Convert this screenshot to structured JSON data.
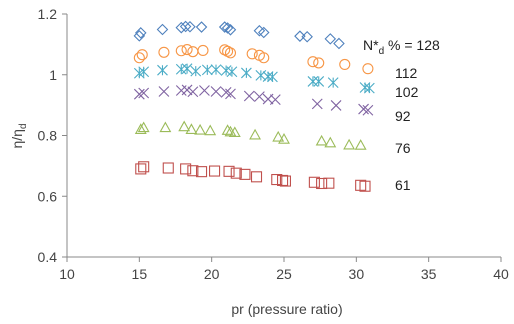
{
  "chart_data": {
    "type": "scatter",
    "title": "",
    "xlabel": "pr (pressure ratio)",
    "ylabel": "η/η",
    "ylabel_subscript": "d",
    "xlim": [
      10,
      40
    ],
    "ylim": [
      0.4,
      1.2
    ],
    "xticks": [
      "10",
      "15",
      "20",
      "25",
      "30",
      "35",
      "40"
    ],
    "yticks": [
      "0.4",
      "0.6",
      "0.8",
      "1",
      "1.2"
    ],
    "grid": false,
    "series": [
      {
        "label": "N*d % = 128",
        "label_parts": {
          "pre": "N*",
          "sub": "d",
          "post": " % = 128"
        },
        "marker": "diamond",
        "color": "#4F81BD",
        "points": [
          [
            15.0,
            1.128
          ],
          [
            15.1,
            1.138
          ],
          [
            16.6,
            1.149
          ],
          [
            17.9,
            1.155
          ],
          [
            18.2,
            1.159
          ],
          [
            18.5,
            1.158
          ],
          [
            19.3,
            1.157
          ],
          [
            20.9,
            1.157
          ],
          [
            21.1,
            1.154
          ],
          [
            21.3,
            1.148
          ],
          [
            23.3,
            1.145
          ],
          [
            23.6,
            1.139
          ],
          [
            26.1,
            1.127
          ],
          [
            26.6,
            1.125
          ],
          [
            28.2,
            1.118
          ],
          [
            28.8,
            1.103
          ]
        ]
      },
      {
        "label": "112",
        "marker": "circle",
        "color": "#F79646",
        "points": [
          [
            15.0,
            1.056
          ],
          [
            15.2,
            1.066
          ],
          [
            16.7,
            1.074
          ],
          [
            17.9,
            1.079
          ],
          [
            18.3,
            1.083
          ],
          [
            18.7,
            1.076
          ],
          [
            19.4,
            1.08
          ],
          [
            20.9,
            1.082
          ],
          [
            21.1,
            1.077
          ],
          [
            21.3,
            1.072
          ],
          [
            22.8,
            1.069
          ],
          [
            23.3,
            1.064
          ],
          [
            23.6,
            1.056
          ],
          [
            27.0,
            1.043
          ],
          [
            27.4,
            1.039
          ],
          [
            29.2,
            1.034
          ],
          [
            30.8,
            1.02
          ]
        ]
      },
      {
        "label": "102",
        "marker": "asterisk",
        "color": "#4BACC6",
        "points": [
          [
            15.0,
            1.005
          ],
          [
            15.3,
            1.01
          ],
          [
            16.6,
            1.015
          ],
          [
            17.9,
            1.018
          ],
          [
            18.3,
            1.02
          ],
          [
            18.9,
            1.012
          ],
          [
            19.7,
            1.016
          ],
          [
            20.3,
            1.017
          ],
          [
            21.0,
            1.014
          ],
          [
            21.4,
            1.01
          ],
          [
            22.4,
            1.006
          ],
          [
            23.4,
            0.998
          ],
          [
            23.9,
            0.994
          ],
          [
            24.2,
            0.993
          ],
          [
            27.0,
            0.978
          ],
          [
            27.4,
            0.978
          ],
          [
            28.4,
            0.974
          ],
          [
            30.6,
            0.958
          ],
          [
            30.9,
            0.956
          ]
        ]
      },
      {
        "label": "92",
        "marker": "x",
        "color": "#8064A2",
        "points": [
          [
            15.0,
            0.936
          ],
          [
            15.3,
            0.94
          ],
          [
            16.7,
            0.945
          ],
          [
            17.9,
            0.948
          ],
          [
            18.3,
            0.95
          ],
          [
            18.7,
            0.944
          ],
          [
            19.5,
            0.948
          ],
          [
            20.3,
            0.945
          ],
          [
            21.0,
            0.942
          ],
          [
            21.3,
            0.937
          ],
          [
            22.6,
            0.93
          ],
          [
            23.3,
            0.928
          ],
          [
            23.9,
            0.92
          ],
          [
            24.4,
            0.918
          ],
          [
            27.3,
            0.904
          ],
          [
            28.6,
            0.899
          ],
          [
            30.5,
            0.887
          ],
          [
            30.8,
            0.883
          ]
        ]
      },
      {
        "label": "76",
        "marker": "triangle",
        "color": "#9BBB59",
        "points": [
          [
            15.1,
            0.82
          ],
          [
            15.3,
            0.826
          ],
          [
            16.8,
            0.826
          ],
          [
            18.1,
            0.829
          ],
          [
            18.6,
            0.82
          ],
          [
            19.2,
            0.818
          ],
          [
            19.9,
            0.816
          ],
          [
            21.1,
            0.817
          ],
          [
            21.3,
            0.812
          ],
          [
            21.6,
            0.81
          ],
          [
            23.0,
            0.802
          ],
          [
            24.6,
            0.795
          ],
          [
            25.0,
            0.788
          ],
          [
            27.6,
            0.782
          ],
          [
            28.2,
            0.776
          ],
          [
            29.5,
            0.769
          ],
          [
            30.3,
            0.768
          ]
        ]
      },
      {
        "label": "61",
        "marker": "square",
        "color": "#C0504D",
        "points": [
          [
            15.1,
            0.69
          ],
          [
            15.3,
            0.697
          ],
          [
            17.0,
            0.693
          ],
          [
            18.2,
            0.69
          ],
          [
            18.7,
            0.684
          ],
          [
            19.3,
            0.681
          ],
          [
            20.2,
            0.683
          ],
          [
            21.2,
            0.682
          ],
          [
            21.7,
            0.676
          ],
          [
            22.3,
            0.672
          ],
          [
            23.1,
            0.664
          ],
          [
            24.5,
            0.655
          ],
          [
            24.9,
            0.652
          ],
          [
            25.1,
            0.65
          ],
          [
            27.1,
            0.646
          ],
          [
            27.6,
            0.642
          ],
          [
            28.1,
            0.643
          ],
          [
            30.3,
            0.636
          ],
          [
            30.6,
            0.633
          ]
        ]
      }
    ]
  }
}
